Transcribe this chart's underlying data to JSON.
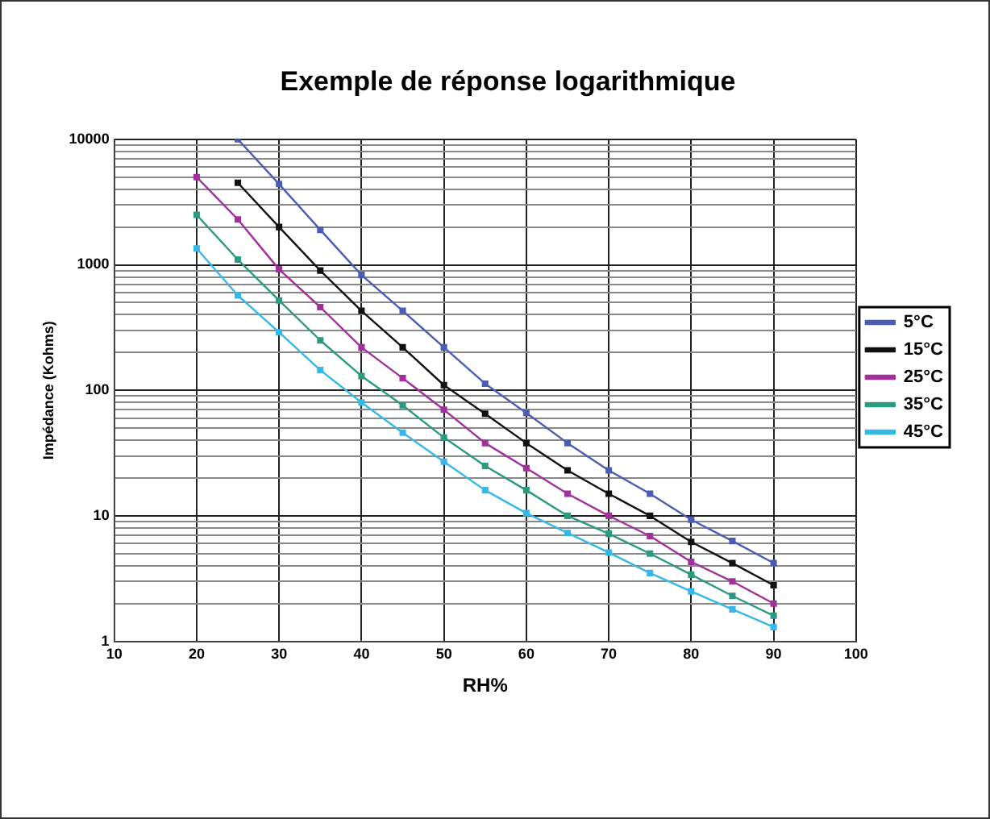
{
  "chart_data": {
    "type": "line",
    "title": "Exemple de réponse logarithmique",
    "xlabel": "RH%",
    "ylabel": "Impédance (Kohms)",
    "x": [
      20,
      25,
      30,
      35,
      40,
      45,
      50,
      55,
      60,
      65,
      70,
      75,
      80,
      85,
      90
    ],
    "series": [
      {
        "name": "5°C",
        "color": "#4a5cb4",
        "values": [
          null,
          10000,
          4400,
          1900,
          830,
          430,
          220,
          113,
          66,
          38,
          23,
          15,
          9.3,
          6.3,
          4.2
        ]
      },
      {
        "name": "15°C",
        "color": "#111111",
        "values": [
          null,
          4500,
          2000,
          900,
          430,
          220,
          110,
          65,
          38,
          23,
          15,
          10,
          6.2,
          4.2,
          2.8
        ]
      },
      {
        "name": "25°C",
        "color": "#a0309a",
        "values": [
          5000,
          2300,
          920,
          460,
          220,
          125,
          70,
          38,
          24,
          15,
          10,
          6.9,
          4.3,
          3.0,
          2.0
        ]
      },
      {
        "name": "35°C",
        "color": "#2a9a80",
        "values": [
          2500,
          1100,
          520,
          250,
          130,
          76,
          42,
          25,
          16,
          10,
          7.2,
          5.0,
          3.4,
          2.3,
          1.6
        ]
      },
      {
        "name": "45°C",
        "color": "#35b8e8",
        "values": [
          1350,
          570,
          290,
          145,
          80,
          46,
          27,
          16,
          10.5,
          7.3,
          5.1,
          3.5,
          2.5,
          1.8,
          1.3
        ]
      }
    ],
    "xlim": [
      10,
      100
    ],
    "xticks": [
      10,
      20,
      30,
      40,
      50,
      60,
      70,
      80,
      90,
      100
    ],
    "log": "y",
    "ylim": [
      1,
      10000
    ],
    "yticks": [
      1,
      {
        "value": 2,
        "label": null
      },
      {
        "value": 3,
        "label": null
      },
      {
        "value": 4,
        "label": null
      },
      {
        "value": 5,
        "label": null
      },
      {
        "value": 6,
        "label": null
      },
      {
        "value": 7,
        "label": null
      },
      {
        "value": 8,
        "label": null
      },
      {
        "value": 9,
        "label": null
      },
      10,
      {
        "value": 20,
        "label": null
      },
      {
        "value": 30,
        "label": null
      },
      {
        "value": 40,
        "label": null
      },
      {
        "value": 50,
        "label": null
      },
      {
        "value": 60,
        "label": null
      },
      {
        "value": 70,
        "label": null
      },
      {
        "value": 80,
        "label": null
      },
      {
        "value": 90,
        "label": null
      },
      100,
      {
        "value": 200,
        "label": null
      },
      {
        "value": 300,
        "label": null
      },
      {
        "value": 400,
        "label": null
      },
      {
        "value": 500,
        "label": null
      },
      {
        "value": 600,
        "label": null
      },
      {
        "value": 700,
        "label": null
      },
      {
        "value": 800,
        "label": null
      },
      {
        "value": 900,
        "label": null
      },
      1000,
      {
        "value": 2000,
        "label": null
      },
      {
        "value": 3000,
        "label": null
      },
      {
        "value": 4000,
        "label": null
      },
      {
        "value": 5000,
        "label": null
      },
      {
        "value": 6000,
        "label": null
      },
      {
        "value": 7000,
        "label": null
      },
      {
        "value": 8000,
        "label": null
      },
      {
        "value": 9000,
        "label": null
      },
      10000
    ],
    "grid": true,
    "legend": "right",
    "marker": "square",
    "line_style": "solid"
  }
}
